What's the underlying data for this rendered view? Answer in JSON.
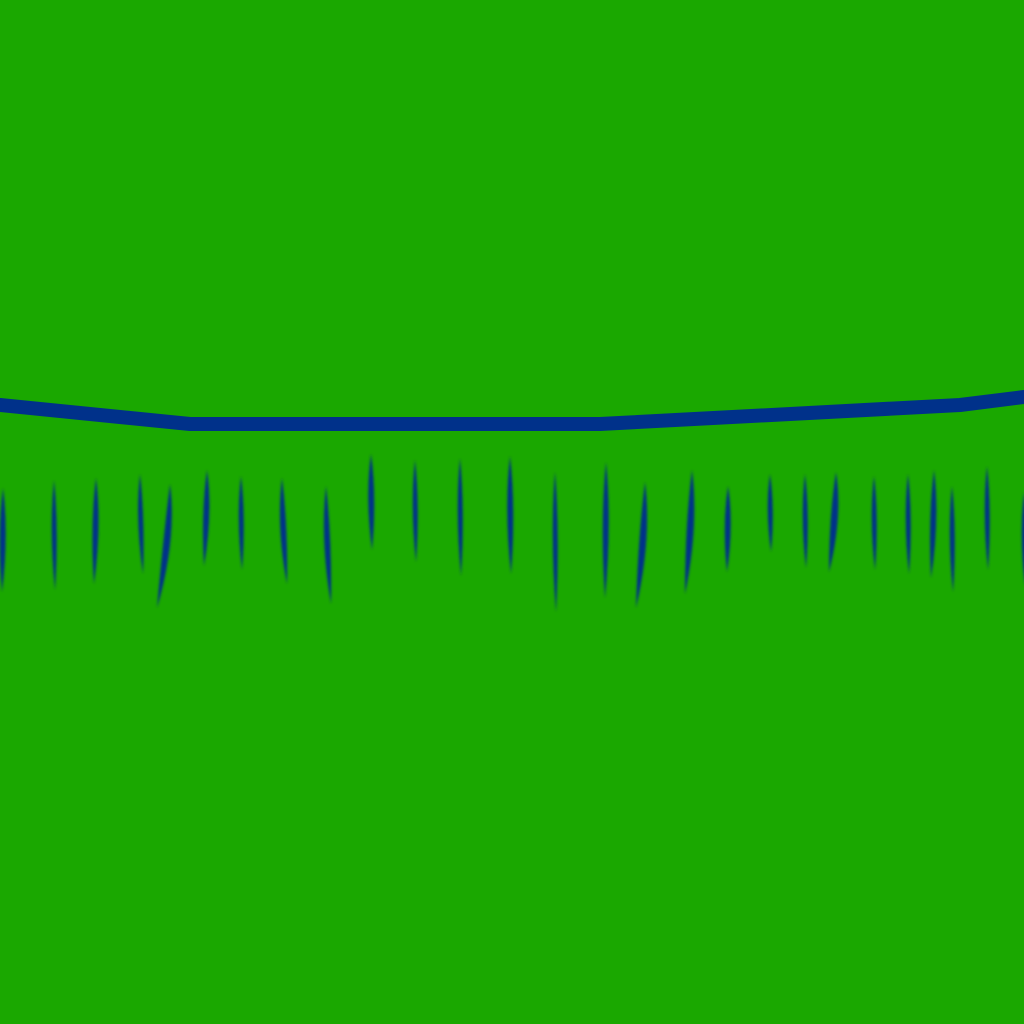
{
  "scene": {
    "background_color": "#1aa800",
    "line_color": "#00318a",
    "mark_color": "#00318a",
    "elements": {
      "horizon_line": "wire",
      "marks": "blades"
    }
  }
}
